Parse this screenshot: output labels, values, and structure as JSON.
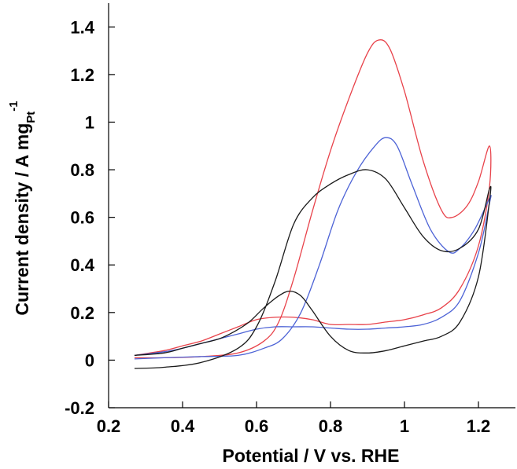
{
  "chart_data": {
    "type": "line",
    "title": "",
    "xlabel": "Potential / V vs. RHE",
    "ylabel": {
      "main": "Current density / A mg",
      "subscript": "Pt",
      "superscript": "-1"
    },
    "xlim": [
      0.2,
      1.3
    ],
    "ylim": [
      -0.2,
      1.5
    ],
    "xticks": [
      0.2,
      0.4,
      0.6,
      0.8,
      1,
      1.2
    ],
    "xtick_labels": [
      "0.2",
      "0.4",
      "0.6",
      "0.8",
      "1",
      "1.2"
    ],
    "yticks": [
      -0.2,
      0,
      0.2,
      0.4,
      0.6,
      0.8,
      1,
      1.2,
      1.4
    ],
    "ytick_labels": [
      "-0.2",
      "0",
      "0.2",
      "0.4",
      "0.6",
      "0.8",
      "1",
      "1.2",
      "1.4"
    ],
    "grid": false,
    "legend": "none",
    "series": [
      {
        "color": "#e8424a",
        "x": [
          0.27,
          0.35,
          0.45,
          0.55,
          0.62,
          0.66,
          0.7,
          0.75,
          0.8,
          0.85,
          0.9,
          0.93,
          0.96,
          1.0,
          1.05,
          1.1,
          1.13,
          1.17,
          1.2,
          1.23,
          1.23,
          1.2,
          1.15,
          1.1,
          1.05,
          1.0,
          0.95,
          0.9,
          0.85,
          0.8,
          0.75,
          0.7,
          0.65,
          0.6,
          0.55,
          0.5,
          0.45,
          0.4,
          0.35,
          0.27
        ],
        "y": [
          0.01,
          0.01,
          0.015,
          0.03,
          0.08,
          0.16,
          0.34,
          0.62,
          0.88,
          1.1,
          1.29,
          1.345,
          1.31,
          1.13,
          0.84,
          0.63,
          0.6,
          0.65,
          0.75,
          0.9,
          0.73,
          0.48,
          0.3,
          0.22,
          0.19,
          0.17,
          0.16,
          0.15,
          0.15,
          0.15,
          0.17,
          0.18,
          0.18,
          0.17,
          0.14,
          0.11,
          0.08,
          0.06,
          0.04,
          0.02
        ]
      },
      {
        "color": "#4d63d6",
        "x": [
          0.27,
          0.35,
          0.45,
          0.55,
          0.62,
          0.67,
          0.72,
          0.77,
          0.82,
          0.87,
          0.92,
          0.95,
          0.98,
          1.02,
          1.07,
          1.12,
          1.15,
          1.19,
          1.23,
          1.23,
          1.2,
          1.15,
          1.1,
          1.05,
          1.0,
          0.95,
          0.9,
          0.85,
          0.8,
          0.75,
          0.7,
          0.65,
          0.6,
          0.55,
          0.5,
          0.45,
          0.4,
          0.35,
          0.27
        ],
        "y": [
          0.005,
          0.01,
          0.015,
          0.02,
          0.05,
          0.09,
          0.2,
          0.4,
          0.63,
          0.79,
          0.9,
          0.935,
          0.9,
          0.74,
          0.55,
          0.455,
          0.47,
          0.55,
          0.68,
          0.66,
          0.45,
          0.25,
          0.18,
          0.15,
          0.14,
          0.135,
          0.13,
          0.13,
          0.135,
          0.14,
          0.14,
          0.14,
          0.13,
          0.11,
          0.09,
          0.07,
          0.05,
          0.035,
          0.02
        ]
      },
      {
        "color": "#1a1a1a",
        "x": [
          0.27,
          0.35,
          0.45,
          0.55,
          0.6,
          0.65,
          0.7,
          0.75,
          0.8,
          0.85,
          0.9,
          0.95,
          1.0,
          1.05,
          1.1,
          1.15,
          1.2,
          1.23,
          1.23,
          1.2,
          1.15,
          1.1,
          1.05,
          1.0,
          0.95,
          0.9,
          0.85,
          0.8,
          0.75,
          0.72,
          0.69,
          0.66,
          0.62,
          0.58,
          0.54,
          0.5,
          0.45,
          0.4,
          0.35,
          0.27
        ],
        "y": [
          -0.035,
          -0.03,
          -0.01,
          0.05,
          0.14,
          0.33,
          0.57,
          0.68,
          0.74,
          0.78,
          0.8,
          0.76,
          0.64,
          0.52,
          0.46,
          0.47,
          0.55,
          0.72,
          0.67,
          0.35,
          0.16,
          0.1,
          0.08,
          0.06,
          0.04,
          0.03,
          0.04,
          0.1,
          0.21,
          0.27,
          0.29,
          0.27,
          0.22,
          0.16,
          0.12,
          0.09,
          0.07,
          0.05,
          0.03,
          0.02
        ]
      }
    ]
  }
}
